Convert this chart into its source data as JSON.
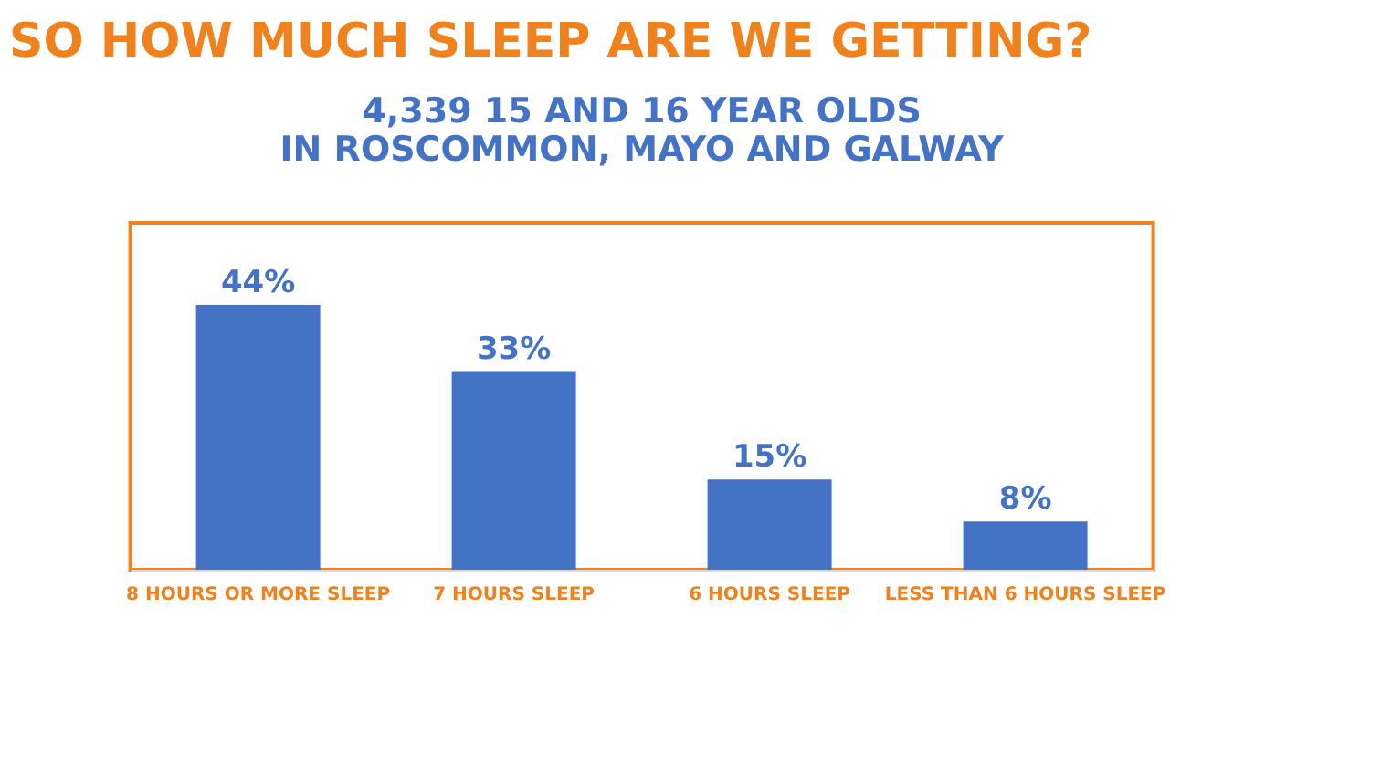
{
  "chart_data": {
    "type": "bar",
    "title": "SO HOW MUCH SLEEP ARE WE GETTING?",
    "subtitle": "4,339 15 AND 16 YEAR OLDS\nIN ROSCOMMON, MAYO AND GALWAY",
    "categories": [
      "8 HOURS OR MORE SLEEP",
      "7 HOURS SLEEP",
      "6 HOURS SLEEP",
      "LESS THAN 6 HOURS SLEEP"
    ],
    "values": [
      44,
      33,
      15,
      8
    ],
    "value_labels": [
      "44%",
      "33%",
      "15%",
      "8%"
    ],
    "color": "#4472c4",
    "tick_labels": "x"
  }
}
